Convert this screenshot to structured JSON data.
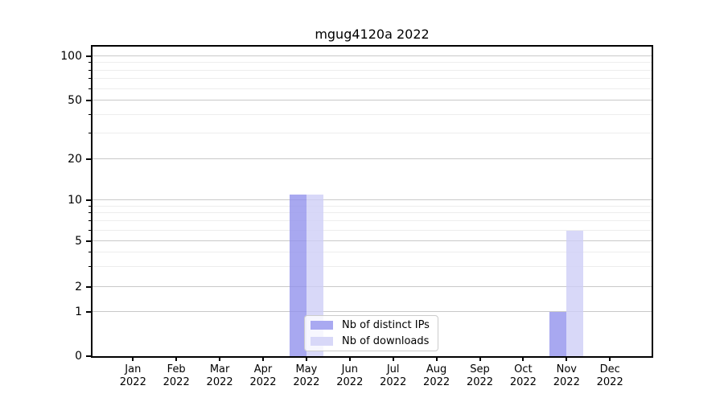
{
  "title": "mgug4120a 2022",
  "legend": {
    "items": [
      {
        "label": "Nb of distinct IPs",
        "color": "#a9a9f1"
      },
      {
        "label": "Nb of downloads",
        "color": "#d8d8f8"
      }
    ]
  },
  "chart_data": {
    "type": "bar",
    "title": "mgug4120a 2022",
    "categories": [
      "Jan",
      "Feb",
      "Mar",
      "Apr",
      "May",
      "Jun",
      "Jul",
      "Aug",
      "Sep",
      "Oct",
      "Nov",
      "Dec"
    ],
    "category_year": "2022",
    "series": [
      {
        "name": "Nb of distinct IPs",
        "color": "#a9a9f1",
        "fill": "rgba(146,146,236,0.8)",
        "values": [
          0,
          0,
          0,
          0,
          11,
          0,
          0,
          0,
          0,
          0,
          1,
          0
        ]
      },
      {
        "name": "Nb of downloads",
        "color": "#d8d8f8",
        "fill": "rgba(206,206,246,0.8)",
        "values": [
          0,
          0,
          0,
          0,
          11,
          0,
          0,
          0,
          0,
          0,
          6,
          0
        ]
      }
    ],
    "xlabel": "",
    "ylabel": "",
    "grid": true,
    "legend_position": "lower center",
    "yaxis": {
      "scale": "log-above-1-linear-below",
      "ylim": [
        0,
        100
      ],
      "major_ticks": [
        100,
        50,
        20,
        10,
        5,
        2,
        1,
        0
      ],
      "minor_ticks": [
        3,
        4,
        6,
        7,
        8,
        9,
        30,
        40,
        60,
        70,
        80,
        90
      ],
      "anchors": [
        [
          0,
          0.0
        ],
        [
          1,
          0.14286
        ],
        [
          2,
          0.22338
        ],
        [
          5,
          0.37143
        ],
        [
          10,
          0.5039
        ],
        [
          20,
          0.63636
        ],
        [
          50,
          0.82597
        ],
        [
          100,
          0.96883
        ]
      ]
    },
    "colors": {
      "grid_major": "#c9c9c9",
      "grid_minor": "#ededed",
      "axis": "#000000",
      "legend_border": "#cccccc"
    }
  }
}
